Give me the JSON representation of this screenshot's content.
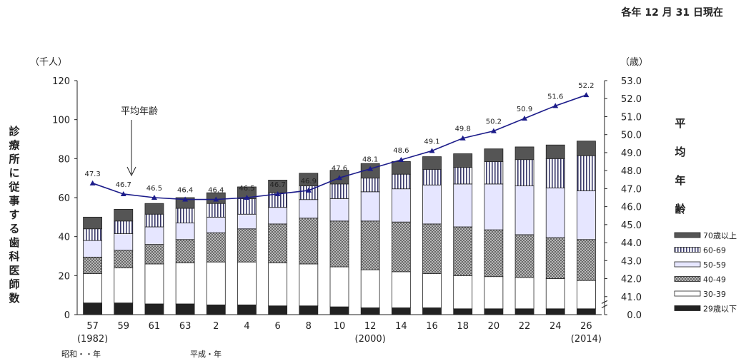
{
  "chart_data": {
    "type": "bar",
    "stacked": true,
    "note": "各年 12 月 31 日現在",
    "left_unit": "（千人）",
    "right_unit": "（歳）",
    "ylabel": "診療所に従事する歯科医師数",
    "y2label": "平均年齢",
    "annotation": "平均年齢",
    "ylim": [
      0,
      120
    ],
    "y_ticks": [
      "0",
      "20",
      "40",
      "60",
      "80",
      "100",
      "120"
    ],
    "y2lim": [
      40.0,
      53.0
    ],
    "y2_ticks": [
      "0.0",
      "41.0",
      "42.0",
      "43.0",
      "44.0",
      "45.0",
      "46.0",
      "47.0",
      "48.0",
      "49.0",
      "50.0",
      "51.0",
      "52.0",
      "53.0"
    ],
    "y2_axis_break": true,
    "categories": [
      "57",
      "59",
      "61",
      "63",
      "2",
      "4",
      "6",
      "8",
      "10",
      "12",
      "14",
      "16",
      "18",
      "20",
      "22",
      "24",
      "26"
    ],
    "category_sublabels": [
      "(1982)",
      "",
      "",
      "",
      "",
      "",
      "",
      "",
      "",
      "(2000)",
      "",
      "",
      "",
      "",
      "",
      "",
      "(2014)"
    ],
    "era_labels": [
      "昭和・・年",
      "平成・年"
    ],
    "legend_position": "right",
    "series": [
      {
        "name": "29歳以下",
        "color": "#222222",
        "values": [
          6,
          6,
          5.5,
          5.5,
          5,
          5,
          4.5,
          4.5,
          4,
          3.5,
          3.5,
          3.5,
          3,
          3,
          3,
          3,
          3
        ]
      },
      {
        "name": "30-39",
        "color": "#ffffff",
        "values": [
          15,
          18,
          20.5,
          21,
          22,
          22,
          22,
          21.5,
          20.5,
          19.5,
          18.5,
          17.5,
          17,
          16.5,
          16,
          15.5,
          14.5
        ]
      },
      {
        "name": "40-49",
        "color": "#999999",
        "values": [
          8.5,
          9,
          10,
          12,
          15,
          17,
          20,
          23.5,
          23.5,
          25,
          25.5,
          25.5,
          25,
          24,
          22,
          21,
          21
        ]
      },
      {
        "name": "50-59",
        "color": "#e6e6ff",
        "values": [
          8.5,
          8.5,
          9,
          8.5,
          8,
          7.5,
          8.5,
          9.5,
          11.5,
          15,
          17,
          20,
          22,
          23.5,
          25,
          25.5,
          25
        ]
      },
      {
        "name": "60-69",
        "color": "#ffffff",
        "values": [
          6,
          6.5,
          6.5,
          7.5,
          7,
          8,
          7.5,
          7,
          7.5,
          7,
          7.5,
          8,
          8.5,
          11.5,
          13.5,
          15,
          18
        ]
      },
      {
        "name": "70歳以上",
        "color": "#555555",
        "values": [
          6,
          6,
          5.5,
          5.5,
          5.5,
          6,
          6.5,
          6.5,
          7,
          7.5,
          6.5,
          6.5,
          7,
          6.5,
          6.5,
          7,
          7.5
        ]
      }
    ],
    "average_age": {
      "name": "平均年齢",
      "color": "#1c1c8a",
      "values": [
        47.3,
        46.7,
        46.5,
        46.4,
        46.4,
        46.5,
        46.7,
        46.9,
        47.6,
        48.1,
        48.6,
        49.1,
        49.8,
        50.2,
        50.9,
        51.6,
        52.2
      ],
      "labels": [
        "47.3",
        "46.7",
        "46.5",
        "46.4",
        "46.4",
        "46.5",
        "46.7",
        "46.9",
        "47.6",
        "48.1",
        "48.6",
        "49.1",
        "49.8",
        "50.2",
        "50.9",
        "51.6",
        "52.2"
      ]
    }
  }
}
